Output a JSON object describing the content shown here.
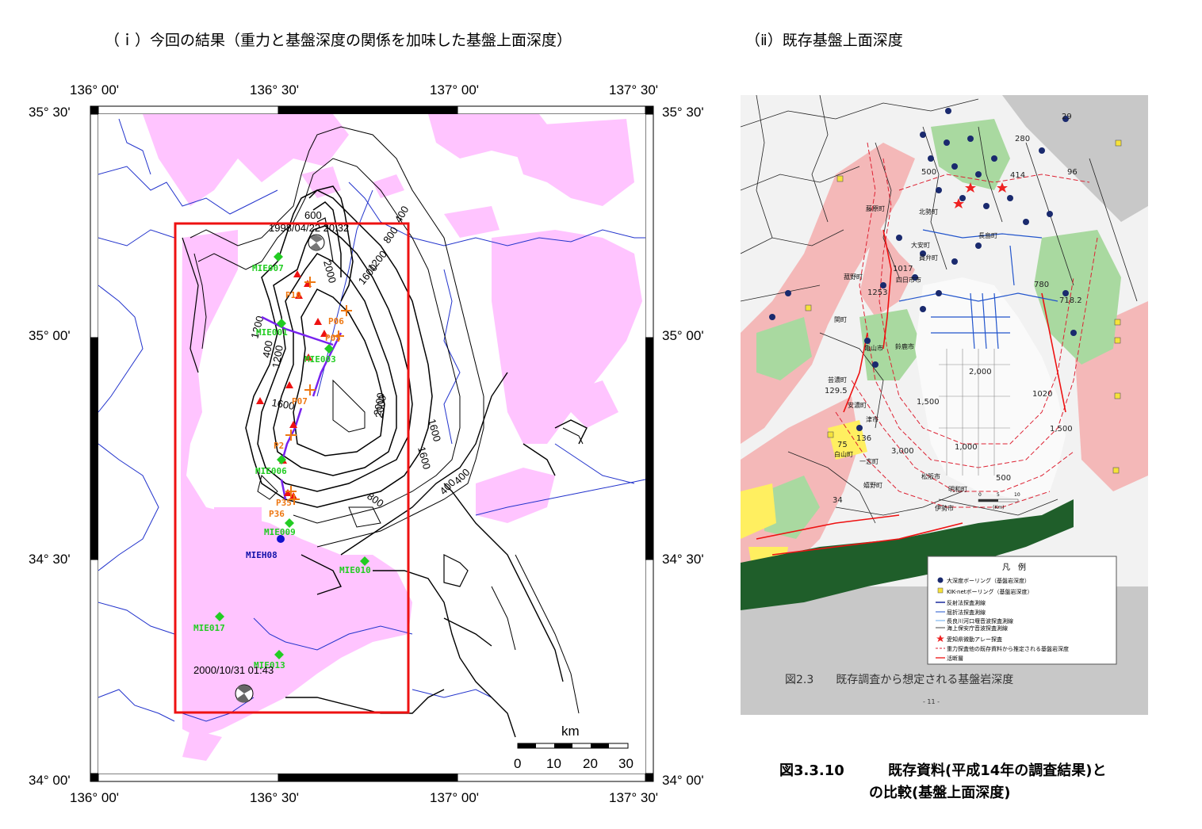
{
  "left_panel": {
    "title": "（ｉ）今回の結果（重力と基盤深度の関係を加味した基盤上面深度）",
    "top_lon_labels": [
      "136° 00'",
      "136° 30'",
      "137° 00'",
      "137° 30'"
    ],
    "bottom_lon_labels": [
      "136° 00'",
      "136° 30'",
      "137° 00'",
      "137° 30'"
    ],
    "left_lat_labels": [
      "35° 30'",
      "35° 00'",
      "34° 30'",
      "34° 00'"
    ],
    "right_lat_labels": [
      "35° 30'",
      "35° 00'",
      "34° 30'",
      "34° 00'"
    ],
    "contour_labels": [
      "600",
      "400",
      "800",
      "1200",
      "1600",
      "2000",
      "2000",
      "1200",
      "400",
      "1600",
      "2000",
      "1600",
      "400",
      "800",
      "400",
      "1200",
      "1600"
    ],
    "events": [
      "1998/04/22 20:32",
      "2000/10/31 01:43"
    ],
    "green_stations": [
      "MIE007",
      "MIE001",
      "MIE003",
      "MIE006",
      "MIE009",
      "MIE010",
      "MIE017",
      "MIE013"
    ],
    "orange_points": [
      "P10",
      "P06",
      "P05",
      "P07",
      "P2",
      "P35",
      "P36"
    ],
    "blue_station": "MIEH08",
    "scale": {
      "unit": "km",
      "ticks": [
        "0",
        "10",
        "20",
        "30"
      ]
    }
  },
  "right_panel": {
    "title": "（ⅱ）既存基盤上面深度",
    "map_numbers": [
      "29",
      "280",
      "96",
      "414",
      "500",
      "1017",
      "1253",
      "718.2",
      "780",
      "2,000",
      "1020",
      "1,500",
      "129.5",
      "75",
      "136",
      "34",
      "500",
      "1,000",
      "1,500",
      "3,000"
    ],
    "place_names": [
      "藤原町",
      "北勢町",
      "大安町",
      "員弁町",
      "四日市市",
      "鈴鹿市",
      "亀山市",
      "関町",
      "芸濃町",
      "安濃町",
      "津市",
      "白山町",
      "一志町",
      "嬉野町",
      "松阪市",
      "明和町",
      "伊勢市",
      "長島町",
      "菰野町"
    ],
    "legend": {
      "title": "凡　例",
      "items": [
        "大深度ボーリング（基盤岩深度）",
        "KIK-netボーリング（基盤岩深度）",
        "反射法探査測線",
        "屈折法探査測線",
        "長良川河口堰音波探査測線",
        "海上保安庁音波探査測線",
        "愛知県微動アレー探査",
        "重力探査他の既存資料から推定される基盤岩深度",
        "活断層"
      ]
    },
    "figure_caption": "図2.3　　既存調査から想定される基盤岩深度",
    "page_number": "- 11 -",
    "scale_ticks": [
      "0",
      "5",
      "10"
    ],
    "scale_unit": "(Km)"
  },
  "caption": {
    "figure_number": "図3.3.10",
    "line1": "既存資料(平成14年の調査結果)と",
    "line2": "の比較(基盤上面深度)"
  },
  "colors": {
    "pink": "#ffc4ff",
    "red_box": "#ee1111",
    "green_station": "#22cc22",
    "orange_point": "#ee7711",
    "river_blue": "#2233cc",
    "fault_purple": "#7722ee"
  }
}
